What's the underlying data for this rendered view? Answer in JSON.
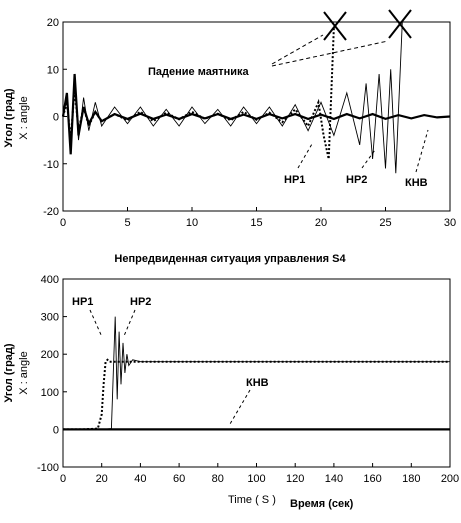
{
  "chart_data": [
    {
      "type": "line",
      "title": "",
      "ylabel_ru": "Угол (град)",
      "ylabel_en": "X : angle",
      "xlim": [
        0,
        30
      ],
      "ylim": [
        -20,
        20
      ],
      "xticks": [
        "0",
        "5",
        "10",
        "15",
        "20",
        "25",
        "30"
      ],
      "yticks": [
        "-20",
        "-10",
        "0",
        "10",
        "20"
      ],
      "annotations": {
        "fall": "Падение маятника",
        "hp1": "HP1",
        "hp2": "HP2",
        "khv": "КНВ"
      },
      "series": [
        {
          "name": "HP1",
          "style": "dotted",
          "x": [
            0,
            0.3,
            0.6,
            0.9,
            1.2,
            1.6,
            2.0,
            2.5,
            3.0,
            4,
            5,
            6,
            7,
            8,
            9,
            10,
            11,
            12,
            13,
            14,
            15,
            16,
            17,
            18,
            19,
            19.8,
            20.2,
            20.6,
            21.0
          ],
          "y": [
            0,
            3,
            -5,
            6,
            -3,
            2,
            -2,
            1,
            -1,
            0.5,
            -0.8,
            1,
            -1,
            0.8,
            -0.6,
            1,
            -0.5,
            0.6,
            -0.8,
            1,
            -0.7,
            0.8,
            -1.2,
            1.5,
            -2,
            3,
            -4,
            -9,
            19
          ]
        },
        {
          "name": "HP2",
          "style": "solid-thin",
          "x": [
            0,
            0.3,
            0.6,
            0.9,
            1.2,
            1.6,
            2.0,
            2.5,
            3.0,
            4,
            5,
            6,
            7,
            8,
            9,
            10,
            11,
            12,
            13,
            14,
            15,
            16,
            17,
            18,
            19,
            20,
            21,
            22,
            23,
            23.5,
            24,
            24.5,
            25,
            25.4,
            25.8,
            26.3
          ],
          "y": [
            0,
            4,
            -7,
            8,
            -5,
            4,
            -3,
            3,
            -2,
            2,
            -1.5,
            2,
            -2,
            1.5,
            -2,
            2,
            -1.5,
            1.5,
            -2,
            2,
            -1.5,
            2,
            -2,
            2.5,
            -3,
            3,
            -4,
            5,
            -6,
            7,
            -9,
            9,
            -11,
            10,
            -12,
            20
          ]
        },
        {
          "name": "КНВ",
          "style": "solid-thick",
          "x": [
            0,
            0.3,
            0.6,
            0.9,
            1.2,
            1.6,
            2.0,
            2.5,
            3.0,
            4,
            5,
            6,
            7,
            8,
            9,
            10,
            11,
            12,
            13,
            14,
            15,
            16,
            17,
            18,
            19,
            20,
            21,
            22,
            23,
            24,
            25,
            26,
            27,
            28,
            29,
            30
          ],
          "y": [
            0,
            5,
            -8,
            9,
            -4,
            2,
            -1.5,
            1,
            -1,
            0.5,
            -0.5,
            0.6,
            -0.5,
            0.4,
            -0.5,
            0.5,
            -0.4,
            0.5,
            -0.5,
            0.4,
            -0.5,
            0.5,
            -0.4,
            0.5,
            -0.5,
            0.4,
            -0.5,
            0.5,
            -0.4,
            0.5,
            -0.5,
            0.3,
            -0.4,
            0.3,
            -0.2,
            0
          ]
        }
      ]
    },
    {
      "type": "line",
      "title": "Непредвиденная ситуация управления S4",
      "ylabel_ru": "Угол (град)",
      "ylabel_en": "X : angle",
      "xlabel_en": "Time ( S )",
      "xlabel_ru": "Время (сек)",
      "xlim": [
        0,
        200
      ],
      "ylim": [
        -100,
        400
      ],
      "xticks": [
        "0",
        "20",
        "40",
        "60",
        "80",
        "100",
        "120",
        "140",
        "160",
        "180",
        "200"
      ],
      "yticks": [
        "-100",
        "0",
        "100",
        "200",
        "300",
        "400"
      ],
      "annotations": {
        "hp1": "HP1",
        "hp2": "HP2",
        "khv": "КНВ"
      },
      "series": [
        {
          "name": "HP1",
          "style": "dotted",
          "x": [
            0,
            10,
            18,
            20,
            21,
            22,
            23,
            24,
            26,
            30,
            40,
            60,
            80,
            100,
            120,
            140,
            160,
            180,
            200
          ],
          "y": [
            0,
            0,
            2,
            40,
            120,
            180,
            185,
            180,
            180,
            180,
            180,
            180,
            180,
            180,
            180,
            180,
            180,
            180,
            180
          ]
        },
        {
          "name": "HP2",
          "style": "solid-thin",
          "x": [
            0,
            10,
            20,
            25,
            26,
            27,
            28,
            29,
            30,
            31,
            32,
            33,
            34,
            36,
            40,
            60,
            80,
            100,
            120,
            140,
            160,
            180,
            200
          ],
          "y": [
            0,
            0,
            0,
            2,
            150,
            300,
            80,
            260,
            120,
            230,
            150,
            200,
            170,
            185,
            180,
            180,
            180,
            180,
            180,
            180,
            180,
            180,
            180
          ]
        },
        {
          "name": "КНВ",
          "style": "solid-thick",
          "x": [
            0,
            20,
            40,
            60,
            80,
            100,
            120,
            140,
            160,
            180,
            200
          ],
          "y": [
            0,
            0,
            0,
            0,
            0,
            0,
            0,
            0,
            0,
            0,
            0
          ]
        }
      ]
    }
  ]
}
